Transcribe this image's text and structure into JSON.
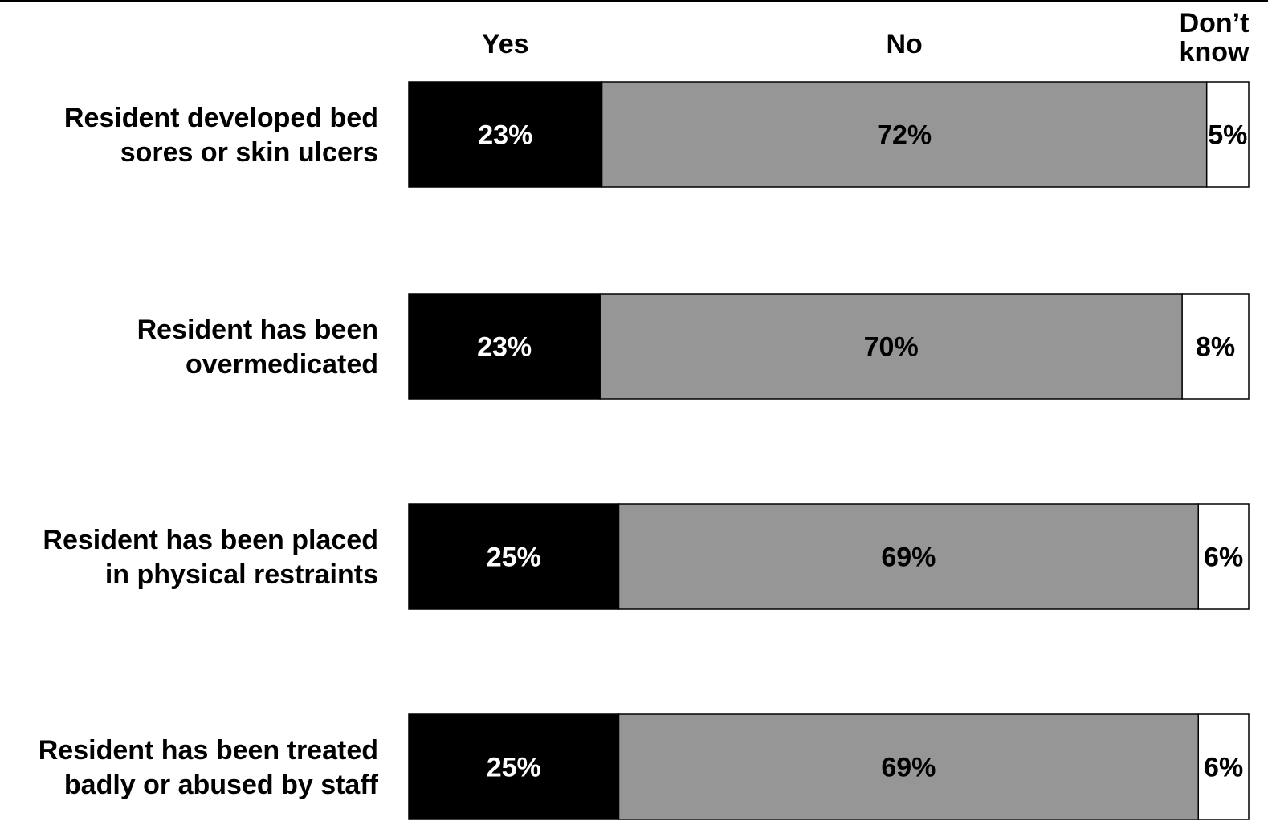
{
  "chart_data": {
    "type": "bar",
    "orientation": "horizontal",
    "stacked": true,
    "percent_stacked": true,
    "categories": [
      [
        "Resident developed bed",
        "sores or skin ulcers"
      ],
      [
        "Resident has been",
        "overmedicated"
      ],
      [
        "Resident has been placed",
        "in physical restraints"
      ],
      [
        "Resident has been treated",
        "badly or abused by staff"
      ]
    ],
    "series": [
      {
        "name": "Yes",
        "header_lines": [
          "Yes"
        ],
        "values": [
          23,
          23,
          25,
          25
        ],
        "labels": [
          "23%",
          "23%",
          "25%",
          "25%"
        ],
        "color": "#000000",
        "label_color": "#ffffff"
      },
      {
        "name": "No",
        "header_lines": [
          "No"
        ],
        "values": [
          72,
          70,
          69,
          69
        ],
        "labels": [
          "72%",
          "70%",
          "69%",
          "69%"
        ],
        "color": "#969696",
        "label_color": "#000000"
      },
      {
        "name": "Don’t know",
        "header_lines": [
          "Don’t",
          "know"
        ],
        "values": [
          5,
          8,
          6,
          6
        ],
        "labels": [
          "5%",
          "8%",
          "6%",
          "6%"
        ],
        "color": "#ffffff",
        "label_color": "#000000"
      }
    ],
    "xlim": [
      0,
      100
    ],
    "grid": false,
    "legend": "top, as column headers above bars",
    "title": "",
    "xlabel": "",
    "ylabel": ""
  }
}
